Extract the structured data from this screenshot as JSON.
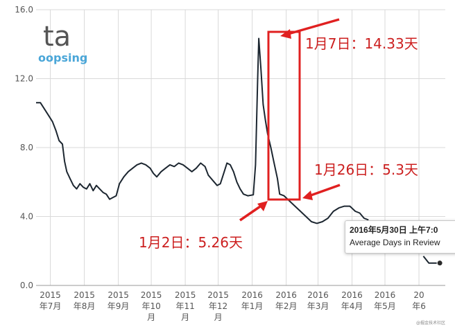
{
  "watermark": {
    "logo": "ta",
    "name": "oopsing"
  },
  "corner_mark": "@掘金技术社区",
  "tooltip": {
    "title": "2016年5月30日 上午7:0",
    "label": "Average Days in Review"
  },
  "annotations": [
    {
      "id": "peak",
      "text": "1月7日：14.33天"
    },
    {
      "id": "end",
      "text": "1月26日：5.3天"
    },
    {
      "id": "start",
      "text": "1月2日：5.26天"
    }
  ],
  "chart_data": {
    "type": "line",
    "title": "",
    "xlabel": "",
    "ylabel": "",
    "ylim": [
      0,
      16
    ],
    "y_ticks": [
      "0.0",
      "4.0",
      "8.0",
      "12.0",
      "16.0"
    ],
    "x_range": [
      "2015-06-18",
      "2016-06-25"
    ],
    "x_ticks": [
      {
        "date": "2015-07-01",
        "label": [
          "2015",
          "年7月"
        ]
      },
      {
        "date": "2015-08-01",
        "label": [
          "2015",
          "年8月"
        ]
      },
      {
        "date": "2015-09-01",
        "label": [
          "2015",
          "年9月"
        ]
      },
      {
        "date": "2015-10-01",
        "label": [
          "2015",
          "年10",
          "月"
        ]
      },
      {
        "date": "2015-11-01",
        "label": [
          "2015",
          "年11",
          "月"
        ]
      },
      {
        "date": "2015-12-01",
        "label": [
          "2015",
          "年12",
          "月"
        ]
      },
      {
        "date": "2016-01-01",
        "label": [
          "2016",
          "年1月"
        ]
      },
      {
        "date": "2016-02-01",
        "label": [
          "2016",
          "年2月"
        ]
      },
      {
        "date": "2016-03-01",
        "label": [
          "2016",
          "年3月"
        ]
      },
      {
        "date": "2016-04-01",
        "label": [
          "2016",
          "年4月"
        ]
      },
      {
        "date": "2016-05-01",
        "label": [
          "2016",
          "年5月"
        ]
      },
      {
        "date": "2016-06-01",
        "label": [
          "20",
          "年6"
        ]
      }
    ],
    "grid": true,
    "series": [
      {
        "name": "Average Days in Review",
        "color": "#1c2630",
        "points": [
          [
            "2015-06-18",
            10.6
          ],
          [
            "2015-06-22",
            10.6
          ],
          [
            "2015-06-26",
            10.2
          ],
          [
            "2015-06-30",
            9.8
          ],
          [
            "2015-07-03",
            9.5
          ],
          [
            "2015-07-06",
            9.0
          ],
          [
            "2015-07-09",
            8.4
          ],
          [
            "2015-07-12",
            8.2
          ],
          [
            "2015-07-14",
            7.2
          ],
          [
            "2015-07-16",
            6.6
          ],
          [
            "2015-07-19",
            6.2
          ],
          [
            "2015-07-22",
            5.8
          ],
          [
            "2015-07-25",
            5.6
          ],
          [
            "2015-07-28",
            5.9
          ],
          [
            "2015-07-31",
            5.7
          ],
          [
            "2015-08-03",
            5.6
          ],
          [
            "2015-08-06",
            5.9
          ],
          [
            "2015-08-09",
            5.5
          ],
          [
            "2015-08-12",
            5.8
          ],
          [
            "2015-08-15",
            5.6
          ],
          [
            "2015-08-18",
            5.4
          ],
          [
            "2015-08-21",
            5.3
          ],
          [
            "2015-08-24",
            5.0
          ],
          [
            "2015-08-27",
            5.1
          ],
          [
            "2015-08-30",
            5.2
          ],
          [
            "2015-09-02",
            5.9
          ],
          [
            "2015-09-06",
            6.3
          ],
          [
            "2015-09-10",
            6.6
          ],
          [
            "2015-09-14",
            6.8
          ],
          [
            "2015-09-18",
            7.0
          ],
          [
            "2015-09-22",
            7.1
          ],
          [
            "2015-09-26",
            7.0
          ],
          [
            "2015-09-30",
            6.8
          ],
          [
            "2015-10-03",
            6.5
          ],
          [
            "2015-10-06",
            6.3
          ],
          [
            "2015-10-10",
            6.6
          ],
          [
            "2015-10-14",
            6.8
          ],
          [
            "2015-10-18",
            7.0
          ],
          [
            "2015-10-22",
            6.9
          ],
          [
            "2015-10-26",
            7.1
          ],
          [
            "2015-10-30",
            7.0
          ],
          [
            "2015-11-03",
            6.8
          ],
          [
            "2015-11-07",
            6.6
          ],
          [
            "2015-11-11",
            6.8
          ],
          [
            "2015-11-15",
            7.1
          ],
          [
            "2015-11-19",
            6.9
          ],
          [
            "2015-11-22",
            6.4
          ],
          [
            "2015-11-26",
            6.1
          ],
          [
            "2015-11-30",
            5.8
          ],
          [
            "2015-12-03",
            5.9
          ],
          [
            "2015-12-06",
            6.5
          ],
          [
            "2015-12-09",
            7.1
          ],
          [
            "2015-12-12",
            7.0
          ],
          [
            "2015-12-15",
            6.6
          ],
          [
            "2015-12-18",
            6.0
          ],
          [
            "2015-12-21",
            5.6
          ],
          [
            "2015-12-24",
            5.3
          ],
          [
            "2015-12-28",
            5.2
          ],
          [
            "2016-01-02",
            5.26
          ],
          [
            "2016-01-04",
            7.0
          ],
          [
            "2016-01-06",
            12.0
          ],
          [
            "2016-01-07",
            14.33
          ],
          [
            "2016-01-09",
            12.5
          ],
          [
            "2016-01-11",
            10.5
          ],
          [
            "2016-01-13",
            9.6
          ],
          [
            "2016-01-15",
            8.8
          ],
          [
            "2016-01-18",
            8.0
          ],
          [
            "2016-01-21",
            7.1
          ],
          [
            "2016-01-24",
            6.2
          ],
          [
            "2016-01-26",
            5.3
          ],
          [
            "2016-01-30",
            5.2
          ],
          [
            "2016-02-04",
            4.9
          ],
          [
            "2016-02-09",
            4.6
          ],
          [
            "2016-02-14",
            4.3
          ],
          [
            "2016-02-19",
            4.0
          ],
          [
            "2016-02-24",
            3.7
          ],
          [
            "2016-02-29",
            3.6
          ],
          [
            "2016-03-05",
            3.7
          ],
          [
            "2016-03-10",
            3.9
          ],
          [
            "2016-03-15",
            4.3
          ],
          [
            "2016-03-20",
            4.5
          ],
          [
            "2016-03-25",
            4.6
          ],
          [
            "2016-03-30",
            4.6
          ],
          [
            "2016-04-04",
            4.3
          ],
          [
            "2016-04-08",
            4.2
          ],
          [
            "2016-04-12",
            3.9
          ],
          [
            "2016-04-16",
            3.8
          ]
        ]
      },
      {
        "name": "Average Days in Review (after tooltip)",
        "color": "#1c2630",
        "points": [
          [
            "2016-06-05",
            1.7
          ],
          [
            "2016-06-10",
            1.3
          ],
          [
            "2016-06-15",
            1.3
          ],
          [
            "2016-06-20",
            1.3
          ]
        ],
        "marker_at": [
          "2016-06-20",
          1.3
        ]
      }
    ]
  }
}
